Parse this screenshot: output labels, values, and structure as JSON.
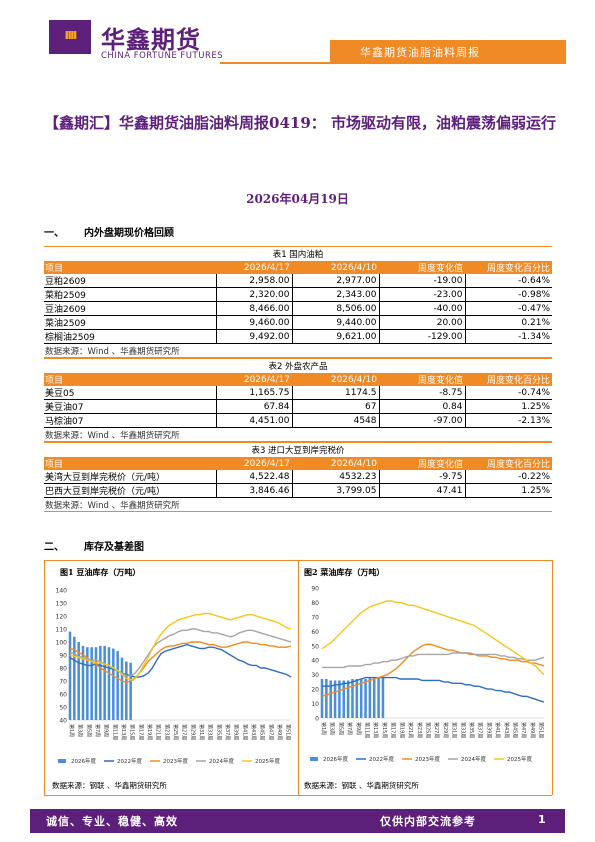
{
  "header": {
    "brand_cn": "华鑫期货",
    "brand_en": "CHINA FORTUNE FUTURES",
    "report_name": "华鑫期货油脂油料周报"
  },
  "title": "【鑫期汇】华鑫期货油脂油料周报0419：  市场驱动有限，油粕震荡偏弱运行",
  "date": "2026年04月19日",
  "sections": [
    {
      "num": "一、",
      "label": "内外盘期现价格回顾"
    },
    {
      "num": "二、",
      "label": "库存及基差图"
    }
  ],
  "tables": [
    {
      "caption": "表1 国内油粕",
      "headers": [
        "项目",
        "2026/4/17",
        "2026/4/10",
        "周度变化值",
        "周度变化百分比"
      ],
      "rows": [
        [
          "豆粕2609",
          "2,958.00",
          "2,977.00",
          "-19.00",
          "-0.64%"
        ],
        [
          "菜粕2509",
          "2,320.00",
          "2,343.00",
          "-23.00",
          "-0.98%"
        ],
        [
          "豆油2609",
          "8,466.00",
          "8,506.00",
          "-40.00",
          "-0.47%"
        ],
        [
          "菜油2509",
          "9,460.00",
          "9,440.00",
          "20.00",
          "0.21%"
        ],
        [
          "棕榈油2509",
          "9,492.00",
          "9,621.00",
          "-129.00",
          "-1.34%"
        ]
      ],
      "source": "数据来源：Wind 、华鑫期货研究所"
    },
    {
      "caption": "表2 外盘农产品",
      "headers": [
        "项目",
        "2026/4/17",
        "2026/4/10",
        "周度变化值",
        "周度变化百分比"
      ],
      "rows": [
        [
          "美豆05",
          "1,165.75",
          "1174.5",
          "-8.75",
          "-0.74%"
        ],
        [
          "美豆油07",
          "67.84",
          "67",
          "0.84",
          "1.25%"
        ],
        [
          "马棕油07",
          "4,451.00",
          "4548",
          "-97.00",
          "-2.13%"
        ]
      ],
      "source": "数据来源：Wind 、华鑫期货研究所"
    },
    {
      "caption": "表3 进口大豆到岸完税价",
      "headers": [
        "项目",
        "2026/4/17",
        "2026/4/10",
        "周度变化值",
        "周度变化百分比"
      ],
      "rows": [
        [
          "美湾大豆到岸完税价（元/吨）",
          "4,522.48",
          "4532.23",
          "-9.75",
          "-0.22%"
        ],
        [
          "巴西大豆到岸完税价（元/吨）",
          "3,846.46",
          "3,799.05",
          "47.41",
          "1.25%"
        ]
      ],
      "source": "数据来源：Wind 、华鑫期货研究所"
    }
  ],
  "chart_data": [
    {
      "type": "line",
      "title": "图1 豆油库存（万吨）",
      "source": "数据来源：钢联 、华鑫期货研究所",
      "ylim": [
        40,
        140
      ],
      "yticks": [
        40,
        50,
        60,
        70,
        80,
        90,
        100,
        110,
        120,
        130,
        140
      ],
      "xlabels": [
        "第1周",
        "第3周",
        "第5周",
        "第7周",
        "第9周",
        "第11周",
        "第13周",
        "第15周",
        "第17周",
        "第19周",
        "第21周",
        "第23周",
        "第25周",
        "第27周",
        "第29周",
        "第31周",
        "第33周",
        "第35周",
        "第37周",
        "第39周",
        "第41周",
        "第43周",
        "第45周",
        "第47周",
        "第49周",
        "第51周"
      ],
      "bar_series": {
        "name": "2026年度",
        "color": "#4a90d9",
        "values": [
          108,
          104,
          100,
          97,
          96,
          96,
          96,
          97,
          97,
          96,
          95,
          93,
          88,
          85,
          84
        ]
      },
      "series": [
        {
          "name": "2022年度",
          "color": "#2e6fbf",
          "values": [
            88,
            86,
            84,
            83,
            82,
            82,
            83,
            82,
            81,
            80,
            79,
            78,
            76,
            75,
            74,
            73,
            73,
            74,
            76,
            80,
            86,
            91,
            93,
            94,
            95,
            96,
            97,
            98,
            97,
            96,
            95,
            95,
            96,
            96,
            95,
            94,
            92,
            90,
            88,
            86,
            85,
            83,
            82,
            82,
            80,
            80,
            79,
            78,
            77,
            76,
            75,
            73
          ]
        },
        {
          "name": "2023年度",
          "color": "#f08a24",
          "values": [
            95,
            94,
            92,
            90,
            88,
            85,
            83,
            80,
            78,
            76,
            74,
            72,
            70,
            69,
            70,
            72,
            76,
            80,
            85,
            88,
            91,
            94,
            96,
            97,
            97,
            98,
            99,
            99,
            100,
            100,
            100,
            99,
            98,
            98,
            97,
            96,
            96,
            97,
            98,
            99,
            100,
            100,
            99,
            99,
            98,
            98,
            97,
            97,
            96,
            96,
            96,
            97
          ]
        },
        {
          "name": "2024年度",
          "color": "#a6a6a6",
          "values": [
            92,
            91,
            89,
            88,
            87,
            86,
            86,
            85,
            83,
            82,
            80,
            78,
            76,
            74,
            74,
            76,
            80,
            85,
            90,
            95,
            99,
            101,
            103,
            105,
            106,
            108,
            109,
            109,
            110,
            110,
            109,
            108,
            108,
            107,
            107,
            106,
            105,
            104,
            105,
            107,
            108,
            109,
            109,
            108,
            107,
            106,
            105,
            104,
            103,
            102,
            101,
            100
          ]
        },
        {
          "name": "2025年度",
          "color": "#f5c518",
          "values": [
            90,
            89,
            88,
            87,
            86,
            85,
            84,
            84,
            83,
            82,
            80,
            78,
            75,
            72,
            71,
            72,
            76,
            82,
            88,
            95,
            101,
            106,
            110,
            113,
            115,
            117,
            118,
            119,
            120,
            121,
            121,
            122,
            122,
            121,
            120,
            119,
            118,
            117,
            118,
            119,
            120,
            121,
            121,
            120,
            119,
            118,
            117,
            116,
            115,
            113,
            111,
            110
          ]
        }
      ]
    },
    {
      "type": "line",
      "title": "图2 菜油库存（万吨）",
      "source": "数据来源：钢联 、华鑫期货研究所",
      "ylim": [
        0,
        90
      ],
      "yticks": [
        0,
        10,
        20,
        30,
        40,
        50,
        60,
        70,
        80,
        90
      ],
      "xlabels": [
        "第1周",
        "第3周",
        "第5周",
        "第7周",
        "第9周",
        "第11周",
        "第13周",
        "第15周",
        "第17周",
        "第19周",
        "第21周",
        "第23周",
        "第25周",
        "第27周",
        "第29周",
        "第31周",
        "第33周",
        "第35周",
        "第37周",
        "第39周",
        "第41周",
        "第43周",
        "第45周",
        "第47周",
        "第49周",
        "第51周"
      ],
      "bar_series": {
        "name": "2026年度",
        "color": "#4a90d9",
        "values": [
          27,
          27,
          26,
          26,
          26,
          26,
          26,
          27,
          27,
          27,
          27,
          28,
          28,
          28,
          28
        ]
      },
      "series": [
        {
          "name": "2022年度",
          "color": "#2e6fbf",
          "values": [
            22,
            22,
            22,
            23,
            23,
            24,
            24,
            25,
            26,
            27,
            28,
            28,
            28,
            28,
            28,
            28,
            28,
            28,
            27,
            27,
            27,
            27,
            27,
            26,
            26,
            26,
            26,
            26,
            25,
            25,
            24,
            24,
            24,
            23,
            23,
            22,
            22,
            21,
            20,
            20,
            19,
            19,
            18,
            18,
            17,
            16,
            15,
            15,
            14,
            13,
            12,
            11
          ]
        },
        {
          "name": "2023年度",
          "color": "#f08a24",
          "values": [
            15,
            16,
            17,
            18,
            19,
            20,
            21,
            22,
            23,
            24,
            25,
            26,
            27,
            28,
            29,
            30,
            32,
            34,
            37,
            40,
            43,
            46,
            48,
            50,
            51,
            51,
            50,
            49,
            48,
            47,
            47,
            46,
            45,
            45,
            44,
            44,
            43,
            43,
            43,
            42,
            42,
            41,
            41,
            40,
            40,
            40,
            39,
            39,
            38,
            38,
            37,
            36
          ]
        },
        {
          "name": "2024年度",
          "color": "#a6a6a6",
          "values": [
            35,
            35,
            35,
            35,
            35,
            35,
            36,
            36,
            36,
            36,
            37,
            37,
            38,
            38,
            39,
            39,
            40,
            40,
            41,
            42,
            43,
            43,
            44,
            44,
            44,
            44,
            44,
            44,
            44,
            44,
            45,
            45,
            45,
            45,
            45,
            44,
            44,
            44,
            44,
            44,
            44,
            43,
            43,
            42,
            42,
            41,
            41,
            40,
            40,
            40,
            41,
            42
          ]
        },
        {
          "name": "2025年度",
          "color": "#f5c518",
          "values": [
            48,
            50,
            52,
            55,
            58,
            61,
            64,
            67,
            70,
            73,
            75,
            77,
            78,
            79,
            80,
            81,
            81,
            80,
            80,
            79,
            78,
            78,
            77,
            76,
            75,
            74,
            73,
            72,
            71,
            70,
            69,
            68,
            67,
            66,
            65,
            64,
            62,
            60,
            58,
            56,
            54,
            52,
            50,
            48,
            46,
            44,
            42,
            40,
            38,
            36,
            33,
            30
          ]
        }
      ]
    }
  ],
  "footer": {
    "left": "诚信、专业、稳健、高效",
    "right": "仅供内部交流参考",
    "page": "1"
  }
}
